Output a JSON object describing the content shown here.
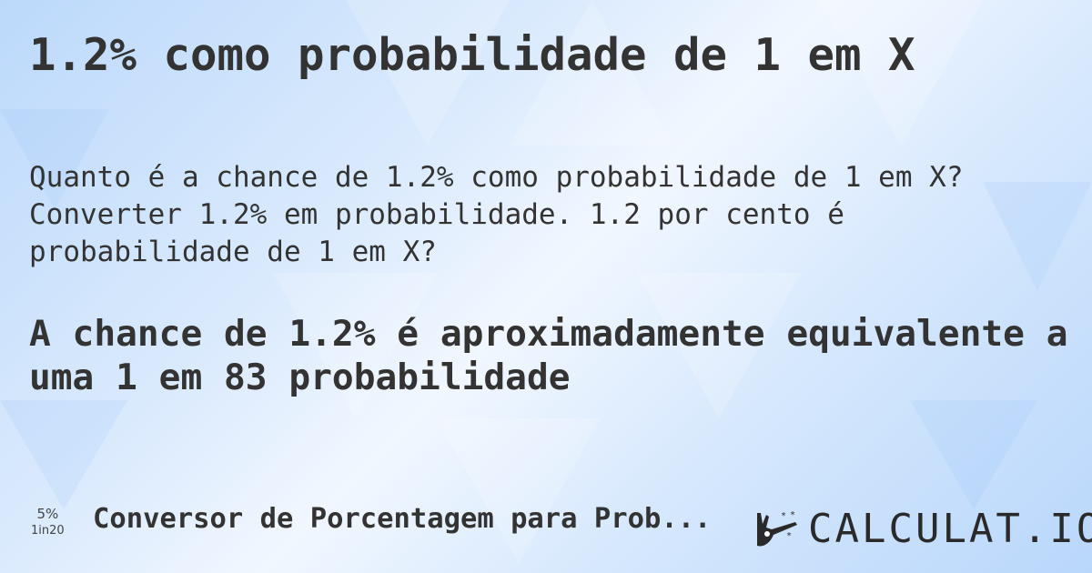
{
  "title": "1.2% como probabilidade de 1 em X",
  "question": "Quanto é a chance de 1.2% como probabilidade de 1 em X? Converter 1.2% em probabilidade. 1.2 por cento é probabilidade de 1 em X?",
  "answer": "A chance de 1.2% é aproximadamente equivalente a uma 1 em 83 probabilidade",
  "badge": {
    "percent": "5%",
    "ratio": "1in20"
  },
  "footer": {
    "label": "Conversor de Porcentagem para Prob..."
  },
  "logo": {
    "text": "CALCULAT.IO",
    "icon": "magic-hand-wand-icon"
  },
  "colors": {
    "text": "#333333",
    "background": "#d6e8fd"
  }
}
